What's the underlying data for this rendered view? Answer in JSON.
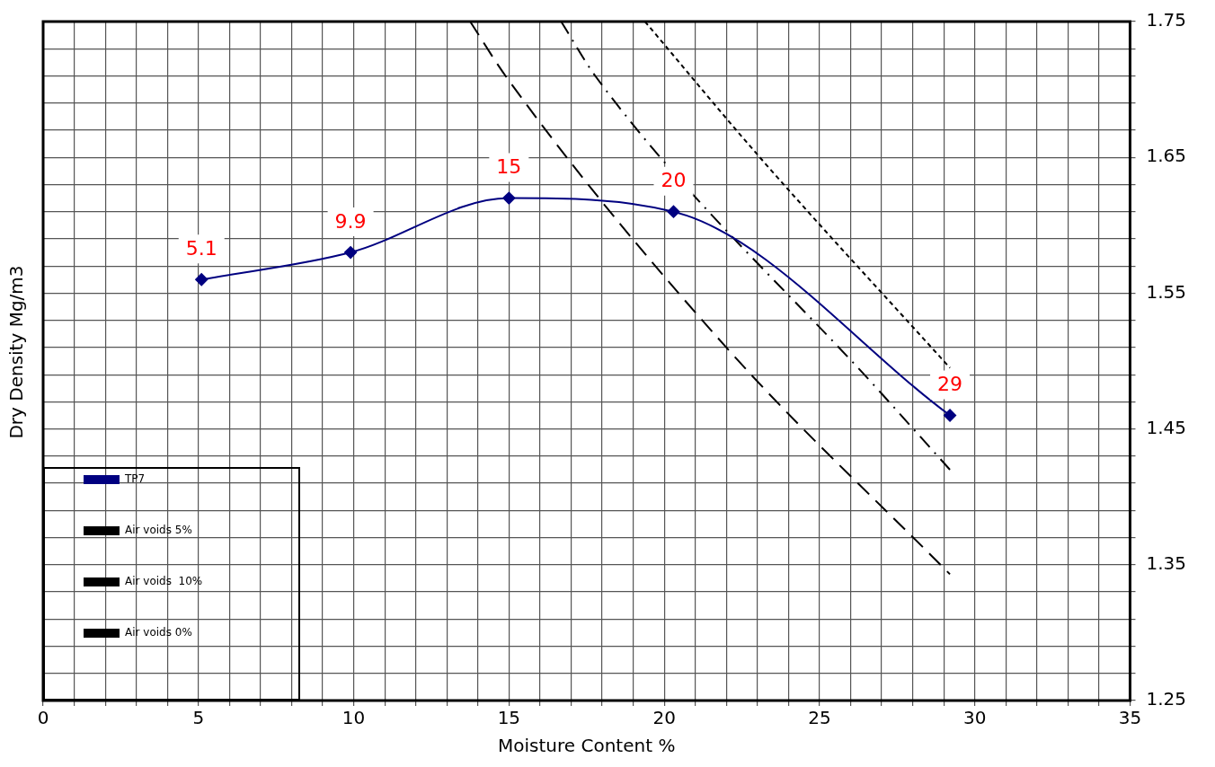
{
  "chart_data": {
    "type": "line",
    "xlabel": "Moisture Content %",
    "ylabel": "Dry Density Mg/m3",
    "xlim": [
      0,
      35
    ],
    "ylim": [
      1.25,
      1.75
    ],
    "xticks": [
      0,
      {
        "value": 1,
        "label": null
      },
      {
        "value": 2,
        "label": null
      },
      {
        "value": 3,
        "label": null
      },
      {
        "value": 4,
        "label": null
      },
      5,
      {
        "value": 6,
        "label": null
      },
      {
        "value": 7,
        "label": null
      },
      {
        "value": 8,
        "label": null
      },
      {
        "value": 9,
        "label": null
      },
      10,
      {
        "value": 11,
        "label": null
      },
      {
        "value": 12,
        "label": null
      },
      {
        "value": 13,
        "label": null
      },
      {
        "value": 14,
        "label": null
      },
      15,
      {
        "value": 16,
        "label": null
      },
      {
        "value": 17,
        "label": null
      },
      {
        "value": 18,
        "label": null
      },
      {
        "value": 19,
        "label": null
      },
      20,
      {
        "value": 21,
        "label": null
      },
      {
        "value": 22,
        "label": null
      },
      {
        "value": 23,
        "label": null
      },
      {
        "value": 24,
        "label": null
      },
      25,
      {
        "value": 26,
        "label": null
      },
      {
        "value": 27,
        "label": null
      },
      {
        "value": 28,
        "label": null
      },
      {
        "value": 29,
        "label": null
      },
      30,
      {
        "value": 31,
        "label": null
      },
      {
        "value": 32,
        "label": null
      },
      {
        "value": 33,
        "label": null
      },
      {
        "value": 34,
        "label": null
      },
      35
    ],
    "yticks": [
      1.25,
      {
        "value": 1.27,
        "label": null
      },
      {
        "value": 1.29,
        "label": null
      },
      {
        "value": 1.31,
        "label": null
      },
      {
        "value": 1.33,
        "label": null
      },
      1.35,
      {
        "value": 1.37,
        "label": null
      },
      {
        "value": 1.39,
        "label": null
      },
      {
        "value": 1.41,
        "label": null
      },
      {
        "value": 1.43,
        "label": null
      },
      1.45,
      {
        "value": 1.47,
        "label": null
      },
      {
        "value": 1.49,
        "label": null
      },
      {
        "value": 1.51,
        "label": null
      },
      {
        "value": 1.53,
        "label": null
      },
      1.55,
      {
        "value": 1.57,
        "label": null
      },
      {
        "value": 1.59,
        "label": null
      },
      {
        "value": 1.61,
        "label": null
      },
      {
        "value": 1.63,
        "label": null
      },
      1.65,
      {
        "value": 1.67,
        "label": null
      },
      {
        "value": 1.69,
        "label": null
      },
      {
        "value": 1.71,
        "label": null
      },
      {
        "value": 1.73,
        "label": null
      },
      1.75
    ],
    "grid": true,
    "legend": "bottom left",
    "series": [
      {
        "name": "TP7",
        "color": "#000080",
        "x": [
          5.1,
          9.9,
          15,
          20.3,
          29.2
        ],
        "values": [
          1.56,
          1.58,
          1.62,
          1.61,
          1.46
        ],
        "marker": "diamond",
        "line_style": "solid"
      },
      {
        "name": "Air voids 5%",
        "color": "#000000",
        "x": [
          16.68,
          17.81,
          27,
          29.2
        ],
        "values": [
          1.75,
          1.709,
          1.476,
          1.42
        ],
        "marker": "none",
        "line_style": "dashdot"
      },
      {
        "name": "Air voids  10%",
        "color": "#000000",
        "x": [
          13.75,
          14.92,
          22,
          29.2
        ],
        "values": [
          1.75,
          1.709,
          1.51,
          1.343
        ],
        "marker": "none",
        "line_style": "dashed"
      },
      {
        "name": "Air voids 0%",
        "color": "#000000",
        "x": [
          19.38,
          23.04,
          29.2
        ],
        "values": [
          1.75,
          1.651,
          1.495
        ],
        "marker": "none",
        "line_style": "dotted"
      }
    ],
    "annotations": [
      {
        "text": "5.1",
        "x": 5.1,
        "y": 1.56
      },
      {
        "text": "9.9",
        "x": 9.9,
        "y": 1.58
      },
      {
        "text": "15",
        "x": 15,
        "y": 1.62
      },
      {
        "text": "20",
        "x": 20.3,
        "y": 1.61
      },
      {
        "text": "29",
        "x": 29.2,
        "y": 1.46
      }
    ]
  }
}
